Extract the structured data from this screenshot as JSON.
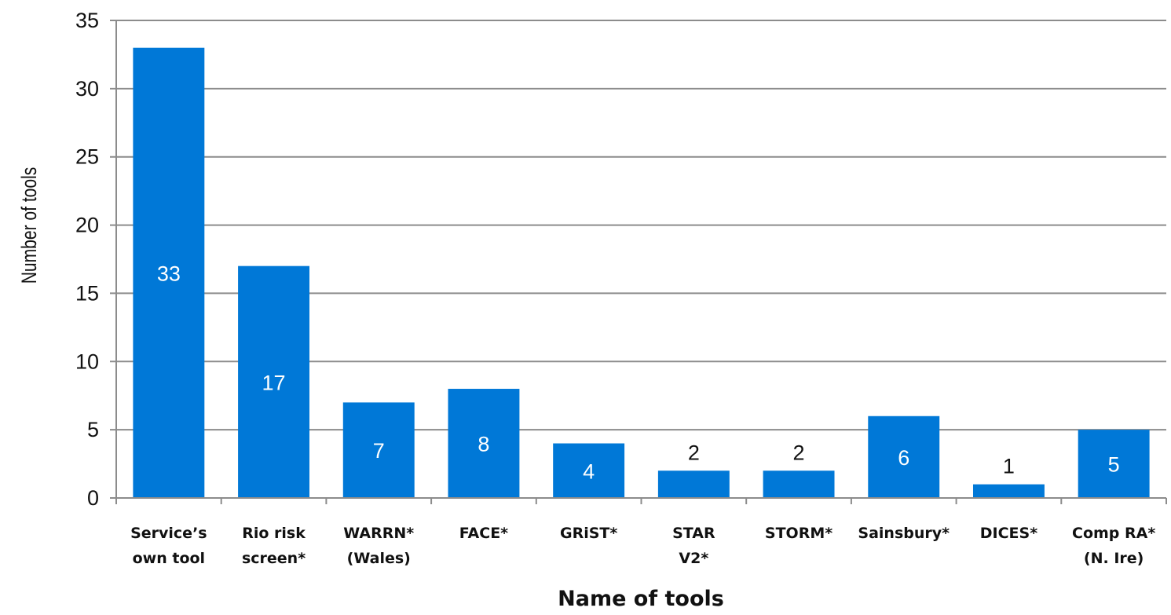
{
  "chart_data": {
    "type": "bar",
    "title": "",
    "xlabel": "Name of tools",
    "ylabel": "Number of tools",
    "ylim": [
      0,
      35
    ],
    "yticks": [
      0,
      5,
      10,
      15,
      20,
      25,
      30,
      35
    ],
    "grid": true,
    "legend": "none",
    "bar_color": "#0078d7",
    "categories": [
      [
        "Service’s",
        "own tool"
      ],
      [
        "Rio risk",
        "screen*"
      ],
      [
        "WARRN*",
        "(Wales)"
      ],
      [
        "FACE*"
      ],
      [
        "GRiST*"
      ],
      [
        "STAR",
        "V2*"
      ],
      [
        "STORM*"
      ],
      [
        "Sainsbury*"
      ],
      [
        "DICES*"
      ],
      [
        "Comp RA*",
        "(N. Ire)"
      ]
    ],
    "values": [
      33,
      17,
      7,
      8,
      4,
      2,
      2,
      6,
      1,
      5
    ],
    "data_labels": [
      "33",
      "17",
      "7",
      "8",
      "4",
      "2",
      "2",
      "6",
      "1",
      "5"
    ]
  }
}
